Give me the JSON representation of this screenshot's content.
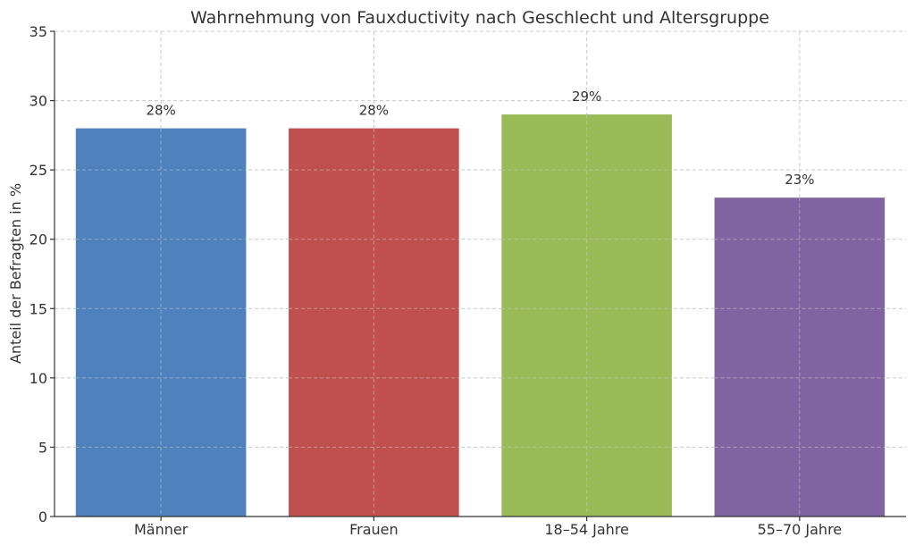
{
  "chart_data": {
    "type": "bar",
    "title": "Wahrnehmung von Fauxductivity nach Geschlecht und Altersgruppe",
    "xlabel": "",
    "ylabel": "Anteil der Befragten in %",
    "categories": [
      "Männer",
      "Frauen",
      "18–54 Jahre",
      "55–70 Jahre"
    ],
    "values": [
      28,
      28,
      29,
      23
    ],
    "data_labels": [
      "28%",
      "28%",
      "29%",
      "23%"
    ],
    "colors": [
      "#4f81bd",
      "#c0504d",
      "#9bbb59",
      "#8064a2"
    ],
    "ylim": [
      0,
      35
    ],
    "yticks": [
      0,
      5,
      10,
      15,
      20,
      25,
      30,
      35
    ],
    "grid": true,
    "legend": "none"
  }
}
